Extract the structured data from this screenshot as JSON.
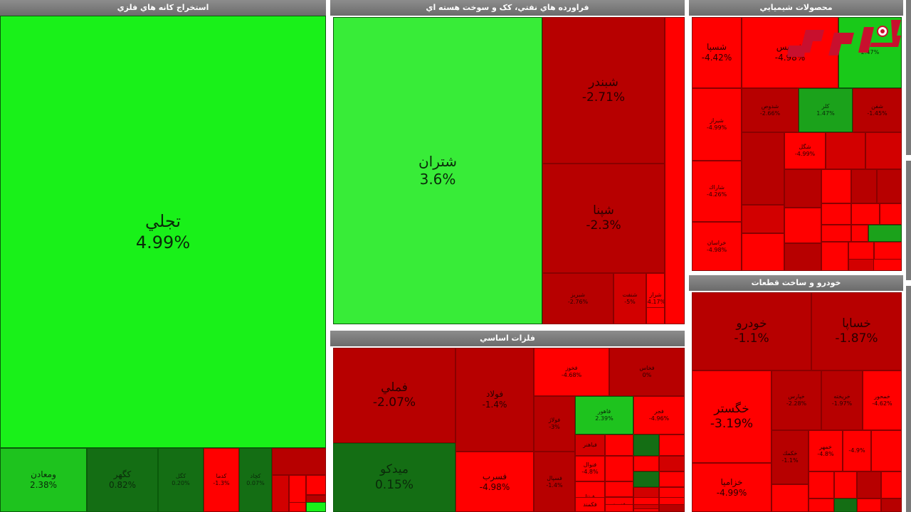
{
  "colors": {
    "strong_up": "#19f119",
    "light_up": "#38ec38",
    "dark_up": "#146e14",
    "mid_up": "#1ec31e",
    "strong_down": "#ff0000",
    "mid_down": "#d20000",
    "dark_down": "#b70000",
    "header_bg": "#7a7a7a"
  },
  "sectors": [
    {
      "title": "استخراج كانه هاي فلزي",
      "tiles": [
        {
          "name": "تجلي",
          "pct": "4.99%",
          "color": "#19f119"
        },
        {
          "name": "ومعادن",
          "pct": "2.38%",
          "color": "#1ec31e"
        },
        {
          "name": "كگهر",
          "pct": "0.82%",
          "color": "#146e14"
        },
        {
          "name": "كگل",
          "pct": "0.20%",
          "color": "#146e14"
        },
        {
          "name": "كدما",
          "pct": "-1.3%",
          "color": "#ff0000"
        },
        {
          "name": "كچاد",
          "pct": "0.07%",
          "color": "#146e14"
        },
        {
          "name": "",
          "pct": "",
          "color": "#b70000"
        },
        {
          "name": "",
          "pct": "",
          "color": "#d20000"
        },
        {
          "name": "",
          "pct": "",
          "color": "#ff0000"
        },
        {
          "name": "",
          "pct": "",
          "color": "#ff0000"
        },
        {
          "name": "",
          "pct": "",
          "color": "#b70000"
        },
        {
          "name": "",
          "pct": "",
          "color": "#ff0000"
        },
        {
          "name": "",
          "pct": "",
          "color": "#19f119"
        }
      ]
    },
    {
      "title": "فراورده هاي نفتي، كک و سوخت هسته اي",
      "tiles": [
        {
          "name": "شتران",
          "pct": "3.6%",
          "color": "#38ec38"
        },
        {
          "name": "شبندر",
          "pct": "-2.71%",
          "color": "#b70000"
        },
        {
          "name": "شپنا",
          "pct": "-2.3%",
          "color": "#b70000"
        },
        {
          "name": "شبريز",
          "pct": "-2.76%",
          "color": "#b70000"
        },
        {
          "name": "شنفت",
          "pct": "-5%",
          "color": "#d20000"
        },
        {
          "name": "شراز",
          "pct": "-4.17%",
          "color": "#ff0000"
        },
        {
          "name": "",
          "pct": "",
          "color": "#ff0000"
        },
        {
          "name": "",
          "pct": "",
          "color": "#ff0000"
        }
      ]
    },
    {
      "title": "فلزات اساسي",
      "tiles": [
        {
          "name": "فملي",
          "pct": "-2.07%",
          "color": "#b70000"
        },
        {
          "name": "فولاد",
          "pct": "-1.4%",
          "color": "#b70000"
        },
        {
          "name": "فخوز",
          "pct": "-4.68%",
          "color": "#ff0000"
        },
        {
          "name": "فخاس",
          "pct": "0%",
          "color": "#b70000"
        },
        {
          "name": "فولاژ",
          "pct": "-3%",
          "color": "#b70000"
        },
        {
          "name": "فاهور",
          "pct": "2.39%",
          "color": "#1ec31e"
        },
        {
          "name": "فجر",
          "pct": "-4.96%",
          "color": "#ff0000"
        },
        {
          "name": "فباهنر",
          "pct": "",
          "color": "#d20000"
        },
        {
          "name": "",
          "pct": "",
          "color": "#ff0000"
        },
        {
          "name": "",
          "pct": "",
          "color": "#146e14"
        },
        {
          "name": "",
          "pct": "",
          "color": "#ff0000"
        },
        {
          "name": "فنوال",
          "pct": "-4.8%",
          "color": "#ff0000"
        },
        {
          "name": "",
          "pct": "",
          "color": "#ff0000"
        },
        {
          "name": "فسرب",
          "pct": "-4.98%",
          "color": "#ff0000"
        },
        {
          "name": "فسپال",
          "pct": "-1.4%",
          "color": "#b70000"
        },
        {
          "name": "",
          "pct": "",
          "color": "#ff0000"
        },
        {
          "name": "",
          "pct": "",
          "color": "#ff0000"
        },
        {
          "name": "",
          "pct": "",
          "color": "#d20000"
        },
        {
          "name": "",
          "pct": "",
          "color": "#146e14"
        },
        {
          "name": "",
          "pct": "",
          "color": "#ff0000"
        },
        {
          "name": "",
          "pct": "",
          "color": "#d20000"
        },
        {
          "name": "فپنتا",
          "pct": "",
          "color": "#ff0000"
        },
        {
          "name": "فنورد",
          "pct": "",
          "color": "#ff0000"
        },
        {
          "name": "",
          "pct": "",
          "color": "#ff0000"
        },
        {
          "name": "",
          "pct": "",
          "color": "#ff0000"
        },
        {
          "name": "",
          "pct": "",
          "color": "#ff0000"
        },
        {
          "name": "",
          "pct": "",
          "color": "#d20000"
        },
        {
          "name": "فكمند",
          "pct": "",
          "color": "#ff0000"
        },
        {
          "name": "",
          "pct": "",
          "color": "#ff0000"
        },
        {
          "name": "",
          "pct": "",
          "color": "#b70000"
        },
        {
          "name": "",
          "pct": "",
          "color": "#ff0000"
        },
        {
          "name": "ميدكو",
          "pct": "0.15%",
          "color": "#146e14"
        }
      ]
    },
    {
      "title": "محصولات شيميايي",
      "tiles": [
        {
          "name": "شسپا",
          "pct": "-4.42%",
          "color": "#ff0000"
        },
        {
          "name": "شپديس",
          "pct": "-4.98%",
          "color": "#ff0000"
        },
        {
          "name": "",
          "pct": "2.47%",
          "color": "#19c919"
        },
        {
          "name": "شيراز",
          "pct": "-4.99%",
          "color": "#ff0000"
        },
        {
          "name": "شدوص",
          "pct": "-2.66%",
          "color": "#b70000"
        },
        {
          "name": "كلر",
          "pct": "1.47%",
          "color": "#1ba21b"
        },
        {
          "name": "شفن",
          "pct": "-1.45%",
          "color": "#b70000"
        },
        {
          "name": "شاراك",
          "pct": "-4.26%",
          "color": "#ff0000"
        },
        {
          "name": "",
          "pct": "",
          "color": "#b70000"
        },
        {
          "name": "شگل",
          "pct": "-4.99%",
          "color": "#ff0000"
        },
        {
          "name": "",
          "pct": "",
          "color": "#d20000"
        },
        {
          "name": "",
          "pct": "",
          "color": "#d20000"
        },
        {
          "name": "خراسان",
          "pct": "-4.98%",
          "color": "#ff0000"
        },
        {
          "name": "",
          "pct": "",
          "color": "#b70000"
        },
        {
          "name": "",
          "pct": "",
          "color": "#ff0000"
        },
        {
          "name": "",
          "pct": "",
          "color": "#b70000"
        },
        {
          "name": "",
          "pct": "",
          "color": "#b70000"
        },
        {
          "name": "",
          "pct": "",
          "color": "#ff0000"
        },
        {
          "name": "",
          "pct": "",
          "color": "#ff0000"
        },
        {
          "name": "",
          "pct": "",
          "color": "#ff0000"
        },
        {
          "name": "",
          "pct": "",
          "color": "#d20000"
        },
        {
          "name": "",
          "pct": "",
          "color": "#ff0000"
        },
        {
          "name": "",
          "pct": "",
          "color": "#ff0000"
        },
        {
          "name": "",
          "pct": "",
          "color": "#ff0000"
        },
        {
          "name": "",
          "pct": "",
          "color": "#1ba21b"
        },
        {
          "name": "",
          "pct": "",
          "color": "#ff0000"
        },
        {
          "name": "",
          "pct": "",
          "color": "#b70000"
        },
        {
          "name": "",
          "pct": "",
          "color": "#ff0000"
        },
        {
          "name": "",
          "pct": "",
          "color": "#ff0000"
        },
        {
          "name": "",
          "pct": "",
          "color": "#ff0000"
        },
        {
          "name": "",
          "pct": "",
          "color": "#ff0000"
        },
        {
          "name": "",
          "pct": "",
          "color": "#d20000"
        }
      ]
    },
    {
      "title": "خودرو و ساخت قطعات",
      "tiles": [
        {
          "name": "خودرو",
          "pct": "-1.1%",
          "color": "#b70000"
        },
        {
          "name": "خساپا",
          "pct": "-1.87%",
          "color": "#b70000"
        },
        {
          "name": "خگستر",
          "pct": "-3.19%",
          "color": "#ff0000"
        },
        {
          "name": "خزاميا",
          "pct": "-4.99%",
          "color": "#ff0000"
        },
        {
          "name": "خپارس",
          "pct": "-2.28%",
          "color": "#b70000"
        },
        {
          "name": "خريخته",
          "pct": "-1.97%",
          "color": "#b70000"
        },
        {
          "name": "خمحور",
          "pct": "-4.62%",
          "color": "#ff0000"
        },
        {
          "name": "خكمك",
          "pct": "-1.1%",
          "color": "#b70000"
        },
        {
          "name": "خمهر",
          "pct": "-4.8%",
          "color": "#ff0000"
        },
        {
          "name": "",
          "pct": "-4.9%",
          "color": "#ff0000"
        },
        {
          "name": "",
          "pct": "",
          "color": "#ff0000"
        },
        {
          "name": "",
          "pct": "",
          "color": "#ff0000"
        },
        {
          "name": "",
          "pct": "",
          "color": "#ff0000"
        },
        {
          "name": "",
          "pct": "",
          "color": "#b70000"
        },
        {
          "name": "",
          "pct": "",
          "color": "#ff0000"
        },
        {
          "name": "",
          "pct": "",
          "color": "#146e14"
        },
        {
          "name": "",
          "pct": "",
          "color": "#ff0000"
        },
        {
          "name": "",
          "pct": "",
          "color": "#ff0000"
        },
        {
          "name": "",
          "pct": "",
          "color": "#ff0000"
        },
        {
          "name": "",
          "pct": "",
          "color": "#b70000"
        }
      ]
    }
  ],
  "logo": {
    "text": "ركنا",
    "color": "#c8102e"
  }
}
